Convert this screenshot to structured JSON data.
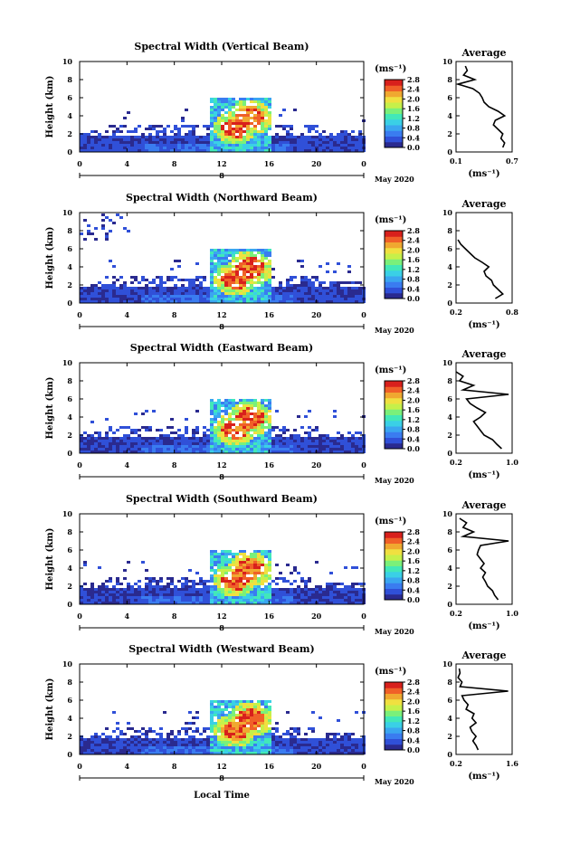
{
  "chart_data": [
    {
      "type": "heatmap",
      "title": "Spectral Width (Vertical Beam)",
      "ylabel": "Height (km)",
      "yticks": [
        "0",
        "2",
        "4",
        "6",
        "8",
        "10"
      ],
      "xticks": [
        "0",
        "4",
        "8",
        "12",
        "16",
        "20",
        "0"
      ],
      "day_label": "8",
      "date_label": "May 2020",
      "colorbar": {
        "unit": "(ms⁻¹)",
        "ticks": [
          "0.0",
          "0.4",
          "0.8",
          "1.2",
          "1.6",
          "2.0",
          "2.4",
          "2.8"
        ]
      },
      "profile": {
        "title": "Average",
        "xticks": [
          "0.1",
          "0.7"
        ],
        "xunit": "(ms⁻¹)",
        "yticks": [
          "0",
          "2",
          "4",
          "6",
          "8",
          "10"
        ],
        "xlim": [
          0.1,
          0.7
        ],
        "heights": [
          0.5,
          1,
          1.5,
          2,
          2.5,
          3,
          3.5,
          4,
          4.5,
          5,
          5.5,
          6,
          6.5,
          7,
          7.5,
          8,
          8.5,
          9,
          9.5
        ],
        "values": [
          0.6,
          0.62,
          0.58,
          0.6,
          0.55,
          0.5,
          0.52,
          0.62,
          0.55,
          0.45,
          0.4,
          0.38,
          0.35,
          0.28,
          0.12,
          0.3,
          0.18,
          0.22,
          0.2
        ]
      }
    },
    {
      "type": "heatmap",
      "title": "Spectral Width (Northward Beam)",
      "ylabel": "Height (km)",
      "yticks": [
        "0",
        "2",
        "4",
        "6",
        "8",
        "10"
      ],
      "xticks": [
        "0",
        "4",
        "8",
        "12",
        "16",
        "20",
        "0"
      ],
      "day_label": "8",
      "date_label": "May 2020",
      "colorbar": {
        "unit": "(ms⁻¹)",
        "ticks": [
          "0.0",
          "0.4",
          "0.8",
          "1.2",
          "1.6",
          "2.0",
          "2.4",
          "2.8"
        ]
      },
      "profile": {
        "title": "Average",
        "xticks": [
          "0.2",
          "0.8"
        ],
        "xunit": "(ms⁻¹)",
        "yticks": [
          "0",
          "2",
          "4",
          "6",
          "8",
          "10"
        ],
        "xlim": [
          0.2,
          0.8
        ],
        "heights": [
          0.5,
          1,
          1.5,
          2,
          2.5,
          3,
          3.5,
          4,
          4.5,
          5,
          5.5,
          6,
          6.5,
          7
        ],
        "values": [
          0.62,
          0.7,
          0.65,
          0.6,
          0.58,
          0.52,
          0.5,
          0.55,
          0.48,
          0.4,
          0.35,
          0.3,
          0.25,
          0.22
        ]
      }
    },
    {
      "type": "heatmap",
      "title": "Spectral Width (Eastward Beam)",
      "ylabel": "Height (km)",
      "yticks": [
        "0",
        "2",
        "4",
        "6",
        "8",
        "10"
      ],
      "xticks": [
        "0",
        "4",
        "8",
        "12",
        "16",
        "20",
        "0"
      ],
      "day_label": "8",
      "date_label": "May 2020",
      "colorbar": {
        "unit": "(ms⁻¹)",
        "ticks": [
          "0.0",
          "0.4",
          "0.8",
          "1.2",
          "1.6",
          "2.0",
          "2.4",
          "2.8"
        ]
      },
      "profile": {
        "title": "Average",
        "xticks": [
          "0.2",
          "1.0"
        ],
        "xunit": "(ms⁻¹)",
        "yticks": [
          "0",
          "2",
          "4",
          "6",
          "8",
          "10"
        ],
        "xlim": [
          0.2,
          1.0
        ],
        "heights": [
          0.5,
          1,
          1.5,
          2,
          2.5,
          3,
          3.5,
          4,
          4.5,
          5,
          5.5,
          6,
          6.5,
          7,
          7.5,
          8,
          8.5,
          9
        ],
        "values": [
          0.85,
          0.78,
          0.72,
          0.6,
          0.55,
          0.5,
          0.45,
          0.55,
          0.62,
          0.5,
          0.4,
          0.35,
          0.95,
          0.3,
          0.45,
          0.25,
          0.3,
          0.2
        ]
      }
    },
    {
      "type": "heatmap",
      "title": "Spectral Width (Southward Beam)",
      "ylabel": "Height (km)",
      "yticks": [
        "0",
        "2",
        "4",
        "6",
        "8",
        "10"
      ],
      "xticks": [
        "0",
        "4",
        "8",
        "12",
        "16",
        "20",
        "0"
      ],
      "day_label": "8",
      "date_label": "May 2020",
      "colorbar": {
        "unit": "(ms⁻¹)",
        "ticks": [
          "0.0",
          "0.4",
          "0.8",
          "1.2",
          "1.6",
          "2.0",
          "2.4",
          "2.8"
        ]
      },
      "profile": {
        "title": "Average",
        "xticks": [
          "0.2",
          "1.0"
        ],
        "xunit": "(ms⁻¹)",
        "yticks": [
          "0",
          "2",
          "4",
          "6",
          "8",
          "10"
        ],
        "xlim": [
          0.2,
          1.0
        ],
        "heights": [
          0.5,
          1,
          1.5,
          2,
          2.5,
          3,
          3.5,
          4,
          4.5,
          5,
          5.5,
          6,
          6.5,
          7,
          7.5,
          8,
          8.5,
          9,
          9.5
        ],
        "values": [
          0.8,
          0.75,
          0.72,
          0.65,
          0.62,
          0.58,
          0.62,
          0.55,
          0.6,
          0.55,
          0.5,
          0.52,
          0.55,
          0.95,
          0.3,
          0.45,
          0.3,
          0.35,
          0.25
        ]
      }
    },
    {
      "type": "heatmap",
      "title": "Spectral Width (Westward Beam)",
      "ylabel": "Height (km)",
      "yticks": [
        "0",
        "2",
        "4",
        "6",
        "8",
        "10"
      ],
      "xticks": [
        "0",
        "4",
        "8",
        "12",
        "16",
        "20",
        "0"
      ],
      "day_label": "8",
      "date_label": "May 2020",
      "xlabel": "Local Time",
      "colorbar": {
        "unit": "(ms⁻¹)",
        "ticks": [
          "0.0",
          "0.4",
          "0.8",
          "1.2",
          "1.6",
          "2.0",
          "2.4",
          "2.8"
        ]
      },
      "profile": {
        "title": "Average",
        "xticks": [
          "0.2",
          "1.6"
        ],
        "xunit": "(ms⁻¹)",
        "yticks": [
          "0",
          "2",
          "4",
          "6",
          "8",
          "10"
        ],
        "xlim": [
          0.2,
          1.6
        ],
        "heights": [
          0.5,
          1,
          1.5,
          2,
          2.5,
          3,
          3.5,
          4,
          4.5,
          5,
          5.5,
          6,
          6.5,
          7,
          7.5,
          8,
          8.5,
          9,
          9.5
        ],
        "values": [
          0.75,
          0.7,
          0.62,
          0.7,
          0.6,
          0.55,
          0.7,
          0.6,
          0.65,
          0.45,
          0.5,
          0.4,
          0.35,
          1.5,
          0.3,
          0.35,
          0.25,
          0.3,
          0.28
        ]
      }
    }
  ]
}
